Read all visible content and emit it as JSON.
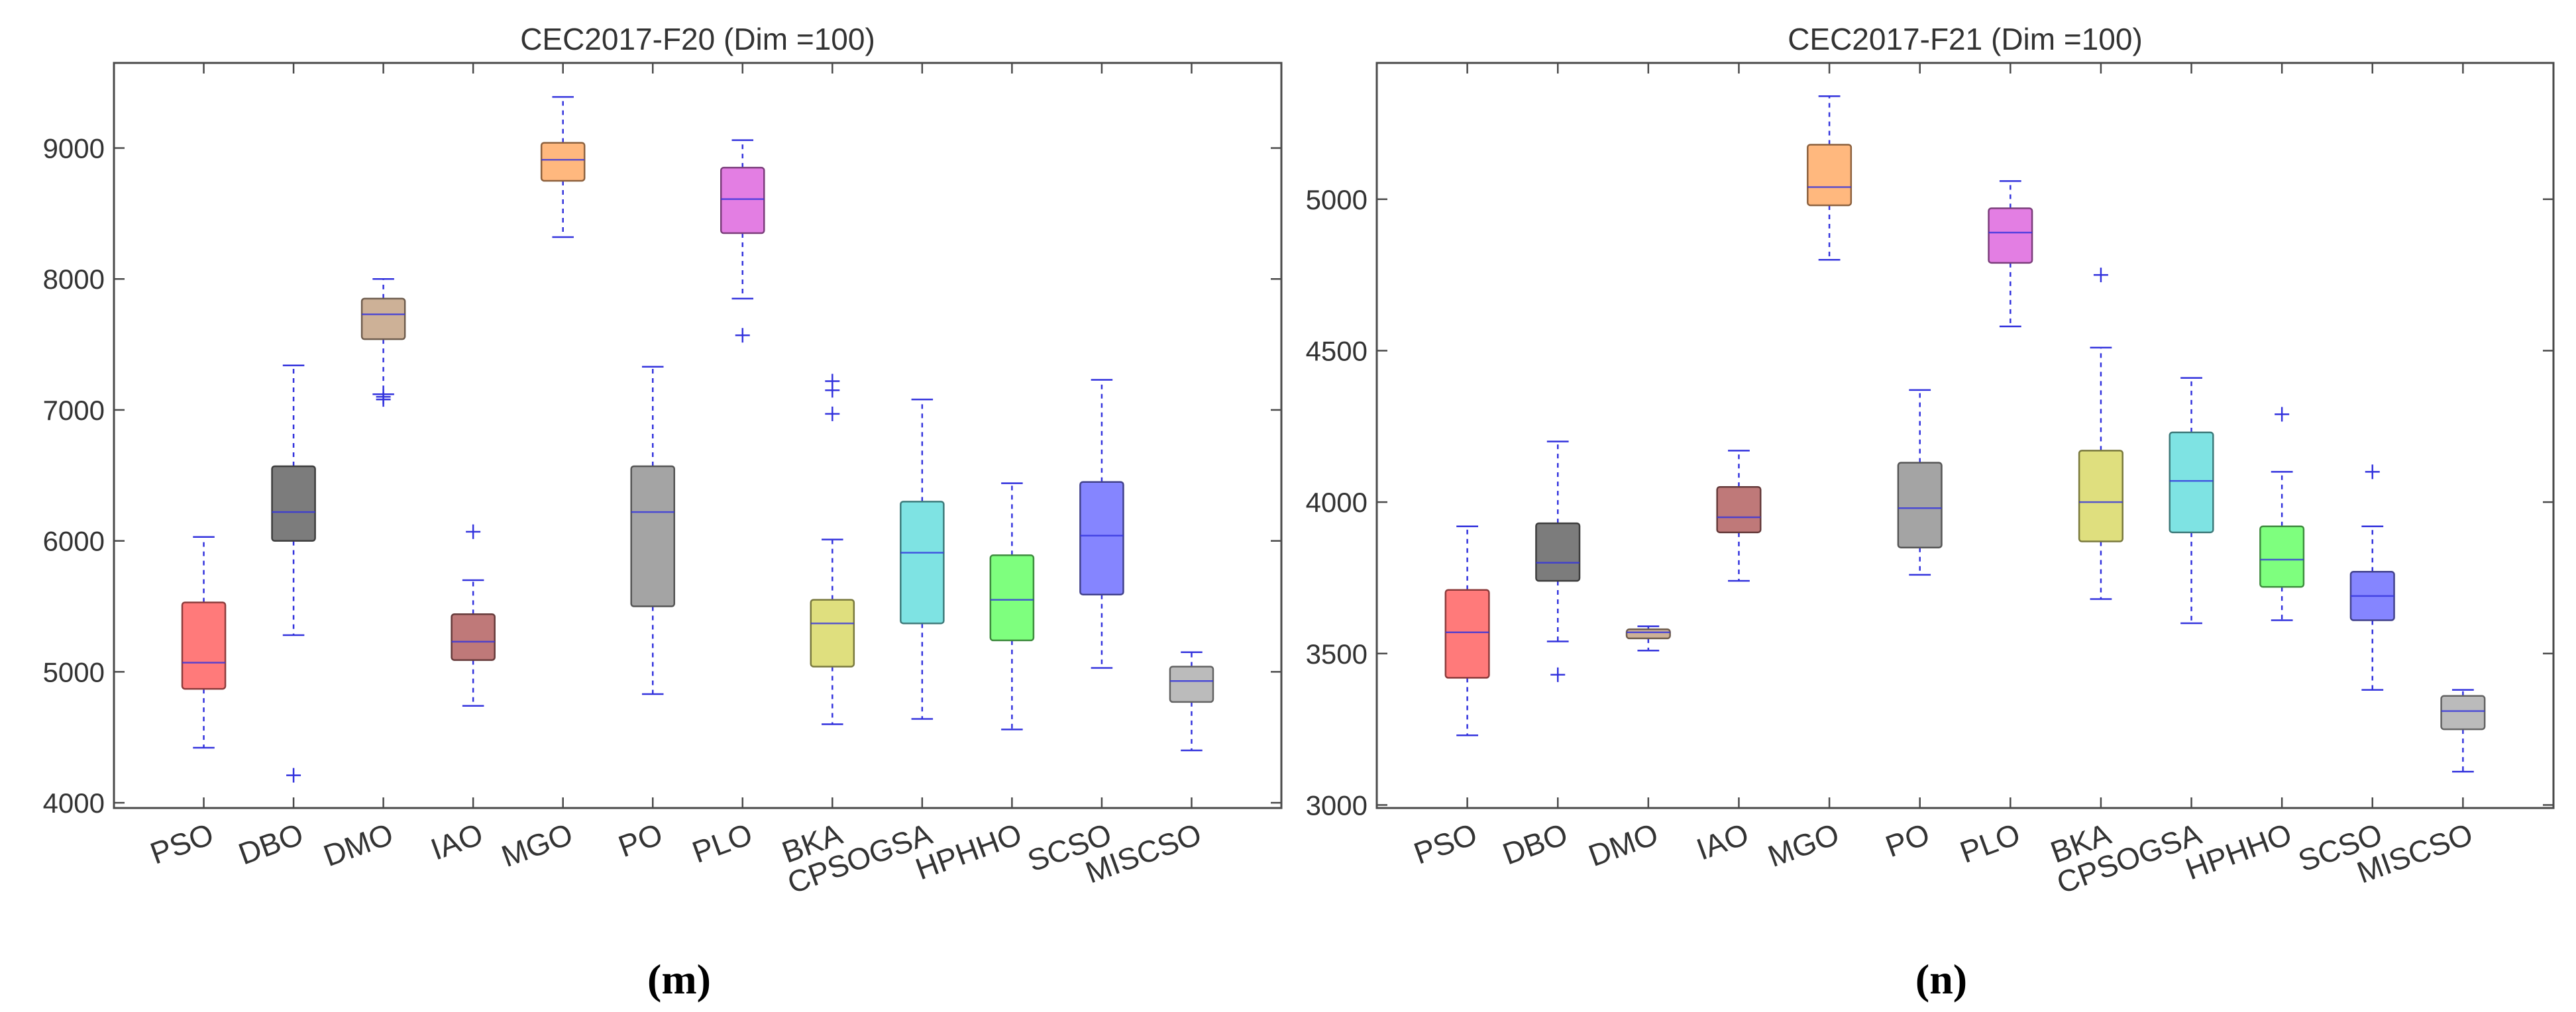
{
  "figure": {
    "captions": [
      {
        "open": "(",
        "label": "m",
        "close": ")"
      },
      {
        "open": "(",
        "label": "n",
        "close": ")"
      }
    ]
  },
  "chart_data": [
    {
      "type": "boxplot",
      "title": "CEC2017-F20 (Dim =100)",
      "xlabel": "",
      "ylabel": "",
      "ylim": [
        3960,
        9650
      ],
      "yticks": [
        4000,
        5000,
        6000,
        7000,
        8000,
        9000
      ],
      "grid": false,
      "categories": [
        "PSO",
        "DBO",
        "DMO",
        "IAO",
        "MGO",
        "PO",
        "PLO",
        "BKA",
        "CPSOGSA",
        "HPHHO",
        "SCSO",
        "MISCSO"
      ],
      "boxes": [
        {
          "name": "PSO",
          "color": "#ff6b6b",
          "min": 4420,
          "q1": 4870,
          "median": 5070,
          "q3": 5530,
          "max": 6030,
          "outliers": []
        },
        {
          "name": "DBO",
          "color": "#6e6e6e",
          "min": 5280,
          "q1": 6000,
          "median": 6220,
          "q3": 6570,
          "max": 7340,
          "outliers": [
            4210
          ]
        },
        {
          "name": "DMO",
          "color": "#c8a88c",
          "min": 7120,
          "q1": 7540,
          "median": 7730,
          "q3": 7850,
          "max": 8000,
          "outliers": [
            7100,
            7080
          ]
        },
        {
          "name": "IAO",
          "color": "#b86a6a",
          "min": 4740,
          "q1": 5090,
          "median": 5230,
          "q3": 5440,
          "max": 5700,
          "outliers": [
            6070
          ]
        },
        {
          "name": "MGO",
          "color": "#ffb070",
          "min": 8320,
          "q1": 8750,
          "median": 8910,
          "q3": 9040,
          "max": 9390,
          "outliers": []
        },
        {
          "name": "PO",
          "color": "#9a9a9a",
          "min": 4830,
          "q1": 5500,
          "median": 6220,
          "q3": 6570,
          "max": 7330,
          "outliers": []
        },
        {
          "name": "PLO",
          "color": "#e070e0",
          "min": 7850,
          "q1": 8350,
          "median": 8610,
          "q3": 8850,
          "max": 9060,
          "outliers": [
            7570
          ]
        },
        {
          "name": "BKA",
          "color": "#dcdc70",
          "min": 4600,
          "q1": 5040,
          "median": 5370,
          "q3": 5550,
          "max": 6010,
          "outliers": [
            6970,
            7150,
            7220
          ]
        },
        {
          "name": "CPSOGSA",
          "color": "#70e0e0",
          "min": 4640,
          "q1": 5370,
          "median": 5910,
          "q3": 6300,
          "max": 7080,
          "outliers": []
        },
        {
          "name": "HPHHO",
          "color": "#70ff70",
          "min": 4560,
          "q1": 5240,
          "median": 5550,
          "q3": 5890,
          "max": 6440,
          "outliers": []
        },
        {
          "name": "SCSO",
          "color": "#7878ff",
          "min": 5030,
          "q1": 5590,
          "median": 6040,
          "q3": 6450,
          "max": 7230,
          "outliers": []
        },
        {
          "name": "MISCSO",
          "color": "#b4b4b4",
          "min": 4400,
          "q1": 4770,
          "median": 4930,
          "q3": 5040,
          "max": 5150,
          "outliers": []
        }
      ]
    },
    {
      "type": "boxplot",
      "title": "CEC2017-F21 (Dim =100)",
      "xlabel": "",
      "ylabel": "",
      "ylim": [
        2990,
        5450
      ],
      "yticks": [
        3000,
        3500,
        4000,
        4500,
        5000
      ],
      "grid": false,
      "categories": [
        "PSO",
        "DBO",
        "DMO",
        "IAO",
        "MGO",
        "PO",
        "PLO",
        "BKA",
        "CPSOGSA",
        "HPHHO",
        "SCSO",
        "MISCSO"
      ],
      "boxes": [
        {
          "name": "PSO",
          "color": "#ff6b6b",
          "min": 3230,
          "q1": 3420,
          "median": 3570,
          "q3": 3710,
          "max": 3920,
          "outliers": []
        },
        {
          "name": "DBO",
          "color": "#6e6e6e",
          "min": 3540,
          "q1": 3740,
          "median": 3800,
          "q3": 3930,
          "max": 4200,
          "outliers": [
            3430
          ]
        },
        {
          "name": "DMO",
          "color": "#c8a88c",
          "min": 3510,
          "q1": 3550,
          "median": 3570,
          "q3": 3580,
          "max": 3590,
          "outliers": []
        },
        {
          "name": "IAO",
          "color": "#b86a6a",
          "min": 3740,
          "q1": 3900,
          "median": 3950,
          "q3": 4050,
          "max": 4170,
          "outliers": []
        },
        {
          "name": "MGO",
          "color": "#ffb070",
          "min": 4800,
          "q1": 4980,
          "median": 5040,
          "q3": 5180,
          "max": 5340,
          "outliers": []
        },
        {
          "name": "PO",
          "color": "#9a9a9a",
          "min": 3760,
          "q1": 3850,
          "median": 3980,
          "q3": 4130,
          "max": 4370,
          "outliers": []
        },
        {
          "name": "PLO",
          "color": "#e070e0",
          "min": 4580,
          "q1": 4790,
          "median": 4890,
          "q3": 4970,
          "max": 5060,
          "outliers": []
        },
        {
          "name": "BKA",
          "color": "#dcdc70",
          "min": 3680,
          "q1": 3870,
          "median": 4000,
          "q3": 4170,
          "max": 4510,
          "outliers": [
            4750
          ]
        },
        {
          "name": "CPSOGSA",
          "color": "#70e0e0",
          "min": 3600,
          "q1": 3900,
          "median": 4070,
          "q3": 4230,
          "max": 4410,
          "outliers": []
        },
        {
          "name": "HPHHO",
          "color": "#70ff70",
          "min": 3610,
          "q1": 3720,
          "median": 3810,
          "q3": 3920,
          "max": 4100,
          "outliers": [
            4290
          ]
        },
        {
          "name": "SCSO",
          "color": "#7878ff",
          "min": 3380,
          "q1": 3610,
          "median": 3690,
          "q3": 3770,
          "max": 3920,
          "outliers": [
            4100
          ]
        },
        {
          "name": "MISCSO",
          "color": "#b4b4b4",
          "min": 3110,
          "q1": 3250,
          "median": 3310,
          "q3": 3360,
          "max": 3380,
          "outliers": []
        }
      ]
    }
  ],
  "style": {
    "axis_color": "#4a4a4a",
    "whisker_color": "#3333dd",
    "text_color": "#333333",
    "caption_color": "#000000"
  }
}
